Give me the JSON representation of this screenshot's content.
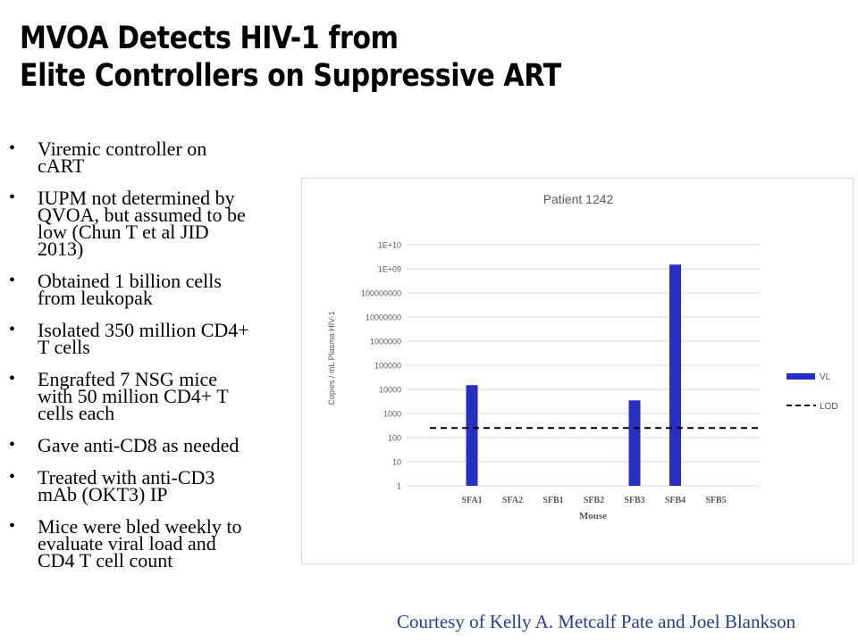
{
  "title_line1": "MVOA Detects HIV-1 from",
  "title_line2": "Elite Controllers on Suppressive ART",
  "bullets": [
    "Viremic controller on\ncART",
    "IUPM not determined by\nQVOA, but assumed to be\nlow (Chun T et al JID\n2013)",
    "Obtained 1 billion cells\nfrom leukopak",
    "Isolated 350 million CD4+\nT cells",
    "Engrafted 7 NSG mice\nwith 50 million CD4+ T\ncells each",
    "Gave anti-CD8 as needed",
    "Treated with anti-CD3\nmAb (OKT3) IP",
    "Mice were bled weekly to\nevaluate viral load and\nCD4 T cell count"
  ],
  "bullet_glyph": "•",
  "credit": "Courtesy of Kelly A. Metcalf Pate and Joel Blankson",
  "colors": {
    "bar": "#2a2fc4",
    "credit": "#1f3d99",
    "grid": "#d9d9d9"
  },
  "chart_data": {
    "type": "bar",
    "title": "Patient 1242",
    "xlabel": "Mouse",
    "ylabel": "Copies / mL Plasma HIV-1",
    "y_scale": "log",
    "ylim": [
      1,
      10000000000
    ],
    "y_tick_labels": [
      "1",
      "10",
      "100",
      "1000",
      "10000",
      "100000",
      "1000000",
      "10000000",
      "100000000",
      "1E+09",
      "1E+10"
    ],
    "categories": [
      "SFA1",
      "SFA2",
      "SFB1",
      "SFB2",
      "SFB3",
      "SFB4",
      "SFB5"
    ],
    "series": [
      {
        "name": "VL",
        "values": [
          15000,
          null,
          null,
          null,
          3500,
          1500000000,
          null
        ]
      },
      {
        "name": "LOD",
        "style": "dashed-line",
        "value": 250
      }
    ],
    "grid": true,
    "legend_position": "right"
  }
}
